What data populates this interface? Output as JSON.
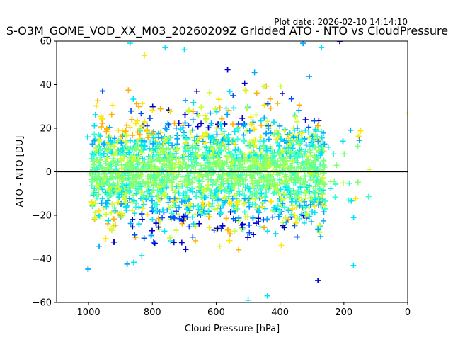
{
  "chart_data": {
    "type": "scatter",
    "title": "S-O3M_GOME_VOD_XX_M03_20260209Z Gridded ATO - NTO vs CloudPressure",
    "plot_date": "Plot date: 2026-02-10 14:14:10",
    "xlabel": "Cloud Pressure [hPa]",
    "ylabel": "ATO - NTO [DU]",
    "xlim": [
      1100,
      0
    ],
    "ylim": [
      -60,
      60
    ],
    "x_inverted": true,
    "xticks": [
      1000,
      800,
      600,
      400,
      200,
      0
    ],
    "yticks": [
      -60,
      -40,
      -20,
      0,
      20,
      40,
      60
    ],
    "xtick_labels": [
      "1000",
      "800",
      "600",
      "400",
      "200",
      "0"
    ],
    "ytick_labels": [
      "−60",
      "−40",
      "−20",
      "0",
      "20",
      "40",
      "60"
    ],
    "marker": "+",
    "reference_line_y": 0,
    "grid": false,
    "colors": [
      "#0000cd",
      "#0050ff",
      "#00a8ff",
      "#00e4f8",
      "#30ffd0",
      "#7dff7a",
      "#c8ff30",
      "#ffe600",
      "#ffb000"
    ],
    "cloud": {
      "x_range": [
        120,
        1010
      ],
      "core_x_range": [
        260,
        990
      ],
      "core_y_std": 12,
      "y_mean": 0
    },
    "notable_points": [
      {
        "x": 0,
        "y": 27
      },
      {
        "x": 120,
        "y": 1
      },
      {
        "x": 170,
        "y": -43
      },
      {
        "x": 870,
        "y": 59
      },
      {
        "x": 760,
        "y": 57
      },
      {
        "x": 700,
        "y": 56
      },
      {
        "x": 500,
        "y": -59
      },
      {
        "x": 270,
        "y": 57
      },
      {
        "x": 440,
        "y": -57
      }
    ]
  }
}
